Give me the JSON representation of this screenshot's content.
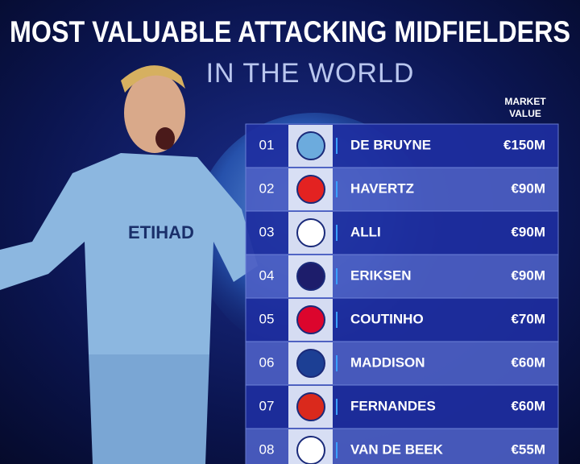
{
  "header": {
    "title": "MOST VALUABLE ATTACKING MIDFIELDERS",
    "subtitle": "IN THE WORLD"
  },
  "table": {
    "column_header": [
      "MARKET",
      "VALUE"
    ],
    "rows": [
      [
        "01",
        "DE BRUYNE",
        "€150M"
      ],
      [
        "02",
        "HAVERTZ",
        "€90M"
      ],
      [
        "03",
        "ALLI",
        "€90M"
      ],
      [
        "04",
        "ERIKSEN",
        "€90M"
      ],
      [
        "05",
        "COUTINHO",
        "€70M"
      ],
      [
        "06",
        "MADDISON",
        "€60M"
      ],
      [
        "07",
        "FERNANDES",
        "€60M"
      ],
      [
        "08",
        "VAN DE BEEK",
        "€55M"
      ]
    ]
  }
}
